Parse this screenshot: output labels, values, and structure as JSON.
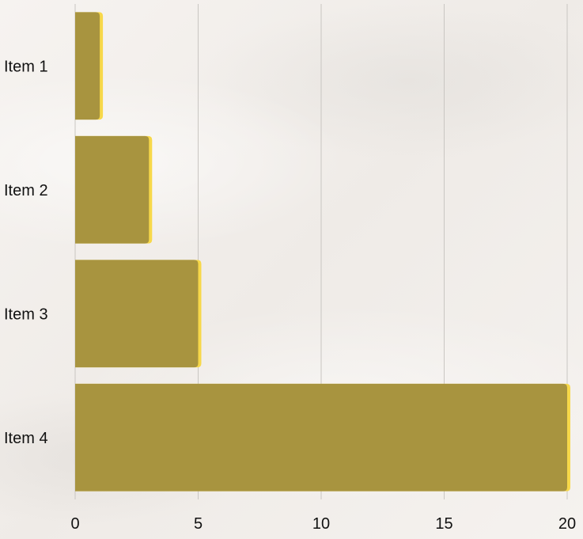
{
  "chart_data": {
    "type": "bar",
    "orientation": "horizontal",
    "categories": [
      "Item 1",
      "Item 2",
      "Item 3",
      "Item 4"
    ],
    "series": [
      {
        "values": [
          1,
          3,
          5,
          20
        ]
      }
    ],
    "xlim": [
      0,
      20
    ],
    "x_ticks": [
      "0",
      "5",
      "10",
      "15",
      "20"
    ],
    "title": "",
    "xlabel": "",
    "ylabel": "",
    "grid": "vertical",
    "legend": "none",
    "colors": {
      "bar": "#a8943f",
      "bar_edge": "#f7d84a",
      "gridline": "#c9c6c2",
      "text": "#111111"
    }
  }
}
